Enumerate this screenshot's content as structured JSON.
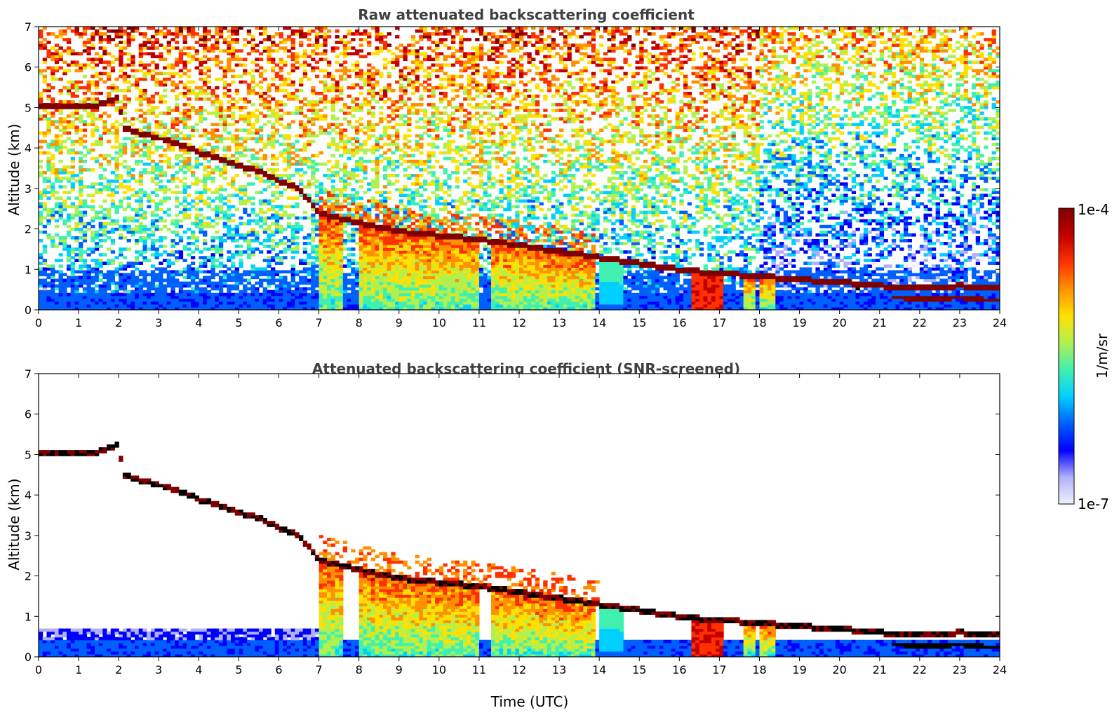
{
  "chart_data": [
    {
      "type": "heatmap",
      "title": "Raw attenuated backscattering coefficient",
      "xlabel": "",
      "ylabel": "Altitude (km)",
      "xlim": [
        0,
        24
      ],
      "ylim": [
        0,
        7
      ],
      "xticks": [
        "0",
        "1",
        "2",
        "3",
        "4",
        "5",
        "6",
        "7",
        "8",
        "9",
        "10",
        "11",
        "12",
        "13",
        "14",
        "15",
        "16",
        "17",
        "18",
        "19",
        "20",
        "21",
        "22",
        "23",
        "24"
      ],
      "yticks": [
        "0",
        "1",
        "2",
        "3",
        "4",
        "5",
        "6",
        "7"
      ],
      "screened": false,
      "cloud_layer": [
        [
          1.4,
          5.05
        ],
        [
          2.0,
          5.25
        ],
        [
          2.1,
          4.5
        ],
        [
          2.6,
          4.35
        ],
        [
          3.0,
          4.25
        ],
        [
          3.5,
          4.1
        ],
        [
          4.0,
          3.9
        ],
        [
          4.5,
          3.75
        ],
        [
          5.0,
          3.55
        ],
        [
          5.5,
          3.45
        ],
        [
          6.0,
          3.2
        ],
        [
          6.5,
          3.0
        ],
        [
          7.0,
          2.4
        ],
        [
          8.0,
          2.15
        ],
        [
          9.0,
          1.95
        ],
        [
          10.0,
          1.85
        ],
        [
          11.0,
          1.75
        ],
        [
          12.0,
          1.6
        ],
        [
          13.0,
          1.45
        ],
        [
          14.0,
          1.3
        ],
        [
          15.0,
          1.15
        ],
        [
          16.0,
          1.0
        ],
        [
          17.0,
          0.9
        ],
        [
          18.0,
          0.85
        ],
        [
          19.0,
          0.75
        ],
        [
          20.0,
          0.7
        ],
        [
          21.0,
          0.6
        ],
        [
          22.0,
          0.55
        ],
        [
          23.0,
          0.6
        ],
        [
          23.9,
          0.55
        ]
      ],
      "lower_layer": [
        [
          21.5,
          0.3
        ],
        [
          22.0,
          0.28
        ],
        [
          23.0,
          0.3
        ],
        [
          23.9,
          0.25
        ]
      ],
      "rain_periods": [
        [
          7.0,
          7.6
        ],
        [
          8.0,
          9.5
        ],
        [
          9.5,
          11.0
        ],
        [
          11.3,
          12.0
        ],
        [
          12.0,
          12.9
        ],
        [
          12.9,
          13.9
        ],
        [
          14.0,
          14.6
        ],
        [
          16.3,
          16.8
        ],
        [
          16.8,
          17.1
        ],
        [
          17.6,
          17.9
        ],
        [
          18.0,
          18.4
        ]
      ]
    },
    {
      "type": "heatmap",
      "title": "Attenuated backscattering coefficient (SNR-screened)",
      "xlabel": "Time (UTC)",
      "ylabel": "Altitude (km)",
      "xlim": [
        0,
        24
      ],
      "ylim": [
        0,
        7
      ],
      "xticks": [
        "0",
        "1",
        "2",
        "3",
        "4",
        "5",
        "6",
        "7",
        "8",
        "9",
        "10",
        "11",
        "12",
        "13",
        "14",
        "15",
        "16",
        "17",
        "18",
        "19",
        "20",
        "21",
        "22",
        "23",
        "24"
      ],
      "yticks": [
        "0",
        "1",
        "2",
        "3",
        "4",
        "5",
        "6",
        "7"
      ],
      "screened": true
    }
  ],
  "colorbar": {
    "label": "1/m/sr",
    "max_label": "1e-4",
    "min_label": "1e-7",
    "stops": [
      "#f0f0ff",
      "#b0b0f8",
      "#0000ff",
      "#0060ff",
      "#00d0ff",
      "#40f0b0",
      "#b0f050",
      "#ffe000",
      "#ff9000",
      "#ff3000",
      "#c00000",
      "#800000"
    ]
  }
}
